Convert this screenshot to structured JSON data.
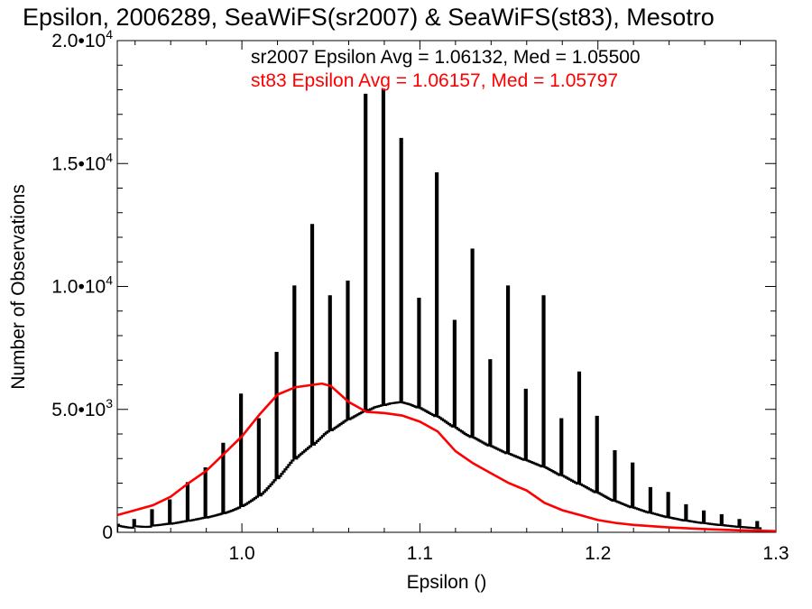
{
  "chart_data": {
    "type": "histogram",
    "title": "Epsilon, 2006289, SeaWiFS(sr2007) & SeaWiFS(st83), Mesotro",
    "xlabel": "Epsilon ()",
    "ylabel": "Number of Observations",
    "xlim": [
      0.93,
      1.3
    ],
    "ylim": [
      0,
      20000
    ],
    "x_ticks": [
      1.0,
      1.1,
      1.2,
      1.3
    ],
    "x_tick_labels": [
      "1.0",
      "1.1",
      "1.2",
      "1.3"
    ],
    "y_ticks": [
      {
        "value": 0,
        "mantissa": "0",
        "exponent": ""
      },
      {
        "value": 5000,
        "mantissa": "5.0•10",
        "exponent": "3"
      },
      {
        "value": 10000,
        "mantissa": "1.0•10",
        "exponent": "4"
      },
      {
        "value": 15000,
        "mantissa": "1.5•10",
        "exponent": "4"
      },
      {
        "value": 20000,
        "mantissa": "2.0•10",
        "exponent": "4"
      }
    ],
    "grid": false,
    "annotations": [
      {
        "text": "sr2007 Epsilon Avg = 1.06132, Med = 1.05500",
        "color": "#000000"
      },
      {
        "text": "st83 Epsilon Avg = 1.06157, Med = 1.05797",
        "color": "#ff0000"
      }
    ],
    "series": [
      {
        "color": "#000000",
        "style": "step",
        "bin_width": 0.001,
        "x_start": 0.93,
        "values": [
          310,
          260,
          240,
          230,
          215,
          205,
          195,
          190,
          185,
          500,
          245,
          240,
          235,
          230,
          225,
          222,
          220,
          224,
          228,
          900,
          275,
          282,
          290,
          298,
          305,
          315,
          325,
          335,
          345,
          1300,
          350,
          362,
          374,
          386,
          398,
          412,
          426,
          440,
          455,
          2000,
          470,
          484,
          498,
          512,
          527,
          542,
          557,
          572,
          588,
          2600,
          600,
          618,
          636,
          654,
          672,
          690,
          710,
          730,
          752,
          3600,
          780,
          805,
          830,
          855,
          882,
          910,
          940,
          972,
          1005,
          5600,
          1070,
          1110,
          1150,
          1195,
          1240,
          1290,
          1340,
          1390,
          1445,
          4600,
          1500,
          1570,
          1640,
          1710,
          1790,
          1870,
          1950,
          2035,
          2120,
          7300,
          2200,
          2290,
          2380,
          2470,
          2560,
          2650,
          2740,
          2830,
          2920,
          10000,
          3000,
          3070,
          3140,
          3200,
          3260,
          3320,
          3380,
          3440,
          3500,
          12500,
          3570,
          3640,
          3710,
          3780,
          3850,
          3920,
          3990,
          4050,
          4100,
          9600,
          4150,
          4200,
          4250,
          4300,
          4350,
          4400,
          4450,
          4500,
          4550,
          10200,
          4600,
          4640,
          4680,
          4720,
          4760,
          4800,
          4840,
          4880,
          4920,
          17800,
          4950,
          4980,
          5010,
          5040,
          5080,
          5100,
          5120,
          5140,
          5160,
          18000,
          5180,
          5200,
          5220,
          5240,
          5250,
          5260,
          5270,
          5280,
          5290,
          16000,
          5280,
          5260,
          5240,
          5220,
          5200,
          5170,
          5140,
          5110,
          5080,
          9500,
          5050,
          5010,
          4970,
          4930,
          4890,
          4850,
          4810,
          4770,
          4730,
          14600,
          4700,
          4650,
          4600,
          4550,
          4500,
          4450,
          4400,
          4350,
          4300,
          8600,
          4250,
          4200,
          4150,
          4100,
          4050,
          4000,
          3960,
          3920,
          3880,
          11500,
          3850,
          3810,
          3770,
          3730,
          3690,
          3650,
          3610,
          3570,
          3530,
          7000,
          3500,
          3465,
          3430,
          3395,
          3360,
          3325,
          3290,
          3255,
          3220,
          10000,
          3190,
          3160,
          3130,
          3100,
          3070,
          3040,
          3010,
          2980,
          2950,
          5800,
          2920,
          2890,
          2860,
          2830,
          2800,
          2770,
          2740,
          2710,
          2680,
          9600,
          2650,
          2610,
          2570,
          2530,
          2490,
          2450,
          2410,
          2370,
          2330,
          4600,
          2300,
          2260,
          2220,
          2180,
          2140,
          2100,
          2060,
          2020,
          1980,
          6500,
          1950,
          1910,
          1870,
          1830,
          1790,
          1750,
          1710,
          1670,
          1630,
          4700,
          1600,
          1560,
          1520,
          1480,
          1440,
          1400,
          1360,
          1320,
          1290,
          3300,
          1260,
          1230,
          1200,
          1170,
          1140,
          1110,
          1080,
          1050,
          1020,
          2800,
          1000,
          975,
          950,
          925,
          900,
          875,
          850,
          825,
          800,
          1800,
          780,
          760,
          740,
          720,
          700,
          680,
          660,
          640,
          620,
          1600,
          600,
          585,
          570,
          555,
          540,
          525,
          510,
          495,
          480,
          1100,
          470,
          458,
          446,
          434,
          422,
          410,
          400,
          390,
          380,
          850,
          370,
          360,
          350,
          340,
          330,
          320,
          312,
          304,
          296,
          700,
          288,
          280,
          272,
          264,
          256,
          248,
          240,
          232,
          224,
          500,
          218,
          212,
          206,
          200,
          194,
          188,
          182,
          176,
          170,
          420,
          165,
          160
        ]
      },
      {
        "color": "#ff0000",
        "style": "line",
        "x": [
          0.93,
          0.94,
          0.95,
          0.96,
          0.97,
          0.98,
          0.99,
          1.0,
          1.01,
          1.02,
          1.03,
          1.04,
          1.045,
          1.05,
          1.06,
          1.07,
          1.08,
          1.09,
          1.1,
          1.11,
          1.12,
          1.13,
          1.14,
          1.15,
          1.16,
          1.17,
          1.18,
          1.19,
          1.2,
          1.21,
          1.22,
          1.24,
          1.26,
          1.28,
          1.3
        ],
        "values": [
          700,
          900,
          1100,
          1450,
          2000,
          2500,
          3200,
          3900,
          4800,
          5600,
          5900,
          6000,
          6050,
          5950,
          5300,
          4900,
          4850,
          4750,
          4500,
          4100,
          3300,
          2800,
          2400,
          2000,
          1700,
          1200,
          900,
          700,
          500,
          380,
          300,
          200,
          130,
          80,
          50
        ]
      }
    ]
  }
}
